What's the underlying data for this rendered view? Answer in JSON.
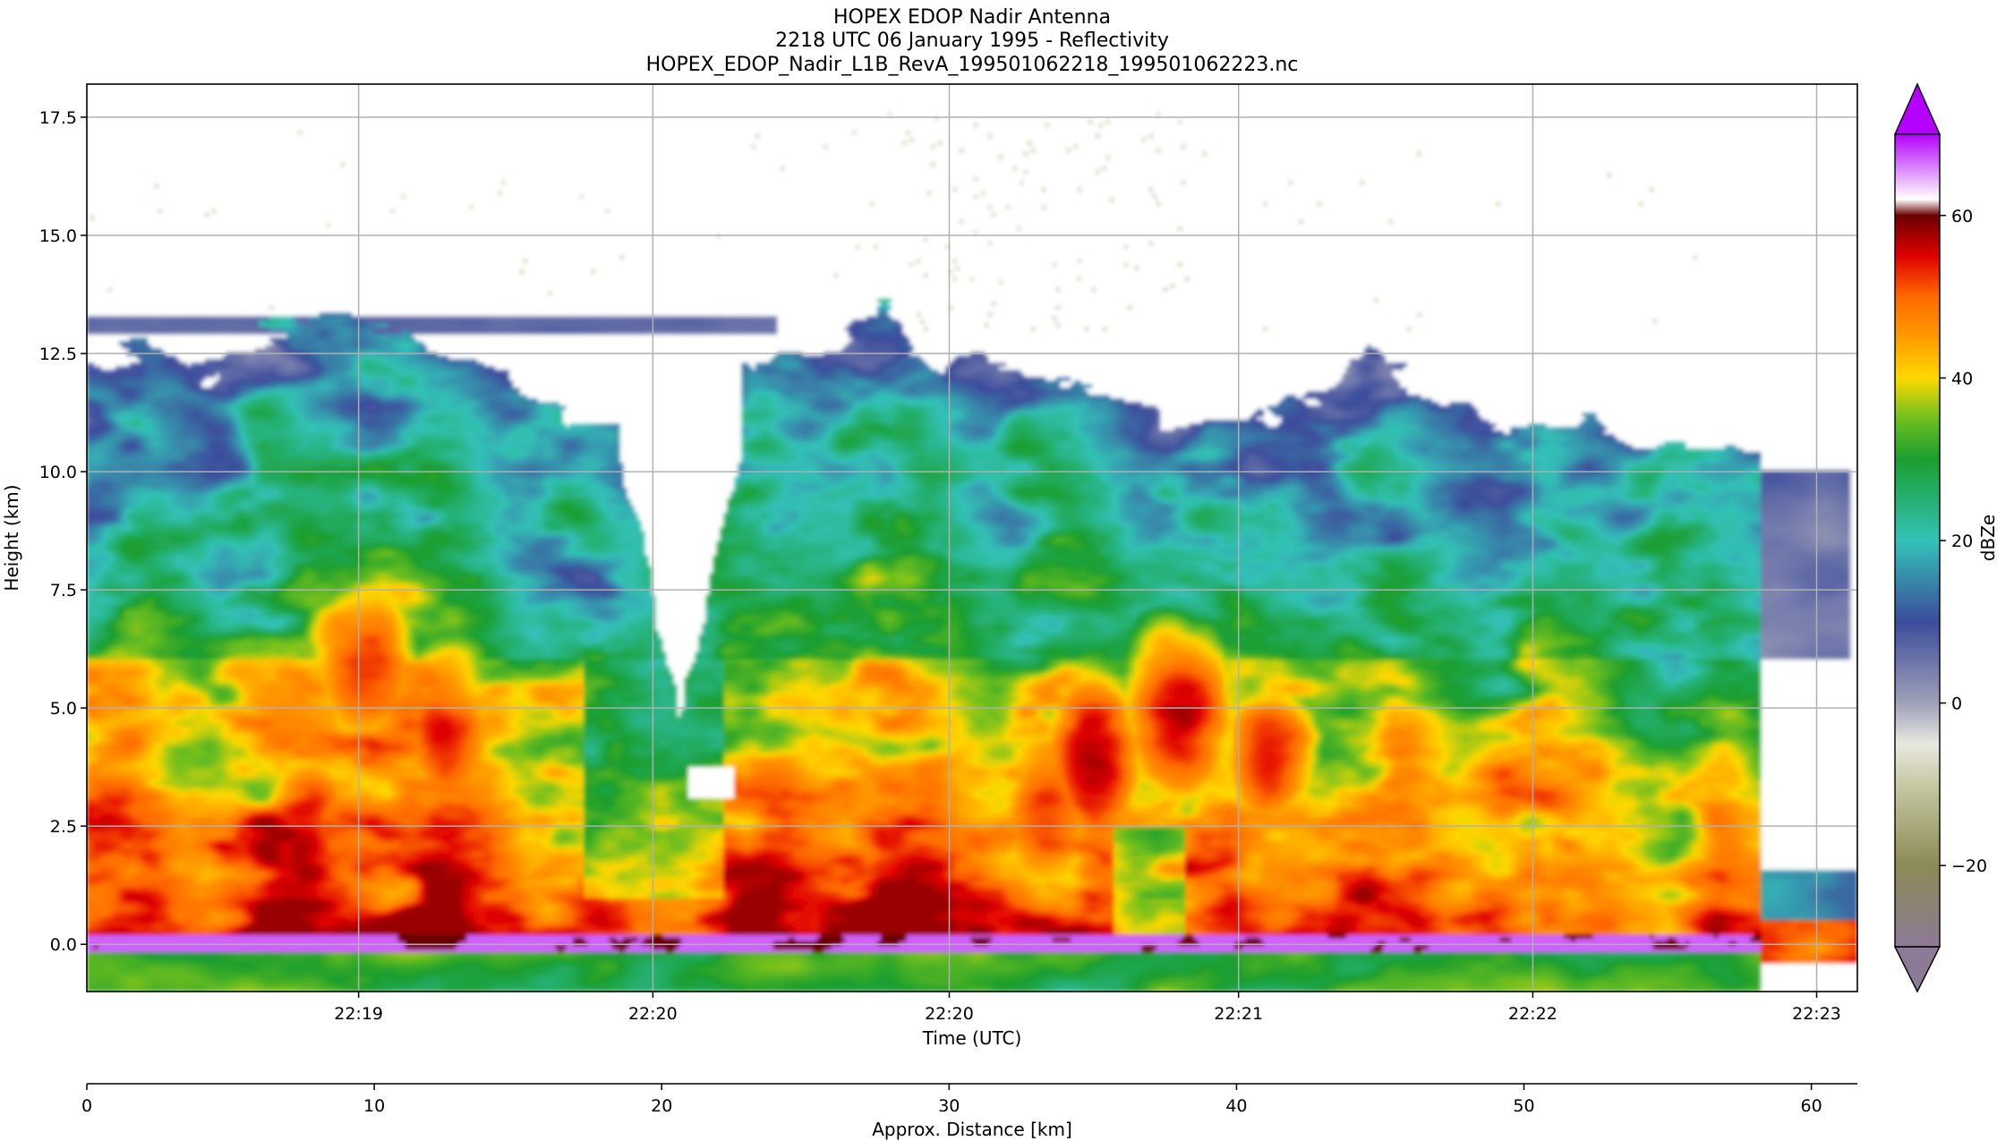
{
  "title_lines": [
    "HOPEX EDOP Nadir Antenna",
    "2218 UTC 06 January 1995 - Reflectivity",
    "HOPEX_EDOP_Nadir_L1B_RevA_199501062218_199501062223.nc"
  ],
  "chart_data": [
    {
      "type": "heatmap",
      "title": "",
      "xlabel": "Time (UTC)",
      "ylabel": "Height (km)",
      "x_ticks": [
        "22:19",
        "22:20",
        "22:20",
        "22:21",
        "22:22",
        "22:23"
      ],
      "y_ticks": [
        0.0,
        2.5,
        5.0,
        7.5,
        10.0,
        12.5,
        15.0,
        17.5
      ],
      "y_tick_labels": [
        "0.0",
        "2.5",
        "5.0",
        "7.5",
        "10.0",
        "12.5",
        "15.0",
        "17.5"
      ],
      "ylim": [
        -1.0,
        18.2
      ],
      "grid": true,
      "colorbar": {
        "label": "dBZe",
        "range": [
          -30,
          70
        ],
        "extend": "both",
        "ticks": [
          -20,
          0,
          20,
          40,
          60
        ],
        "tick_labels": [
          "−20",
          "0",
          "20",
          "40",
          "60"
        ],
        "colors": [
          {
            "v": -30,
            "c": "#8c7a96"
          },
          {
            "v": -20,
            "c": "#8c8a55"
          },
          {
            "v": -10,
            "c": "#c7c9a4"
          },
          {
            "v": -5,
            "c": "#e8e8e0"
          },
          {
            "v": 0,
            "c": "#9ea0b8"
          },
          {
            "v": 10,
            "c": "#3c4c9c"
          },
          {
            "v": 20,
            "c": "#33c2b8"
          },
          {
            "v": 30,
            "c": "#1a9e2e"
          },
          {
            "v": 35,
            "c": "#6fbf1f"
          },
          {
            "v": 40,
            "c": "#ffd900"
          },
          {
            "v": 45,
            "c": "#ff9a00"
          },
          {
            "v": 50,
            "c": "#ff6a00"
          },
          {
            "v": 55,
            "c": "#e00000"
          },
          {
            "v": 60,
            "c": "#6b0000"
          },
          {
            "v": 62,
            "c": "#ffffff"
          },
          {
            "v": 70,
            "c": "#b300ff"
          }
        ]
      },
      "features": {
        "cloud_top_km": [
          12.3,
          12.6,
          12.0,
          12.8,
          13.4,
          13.0,
          12.6,
          12.0,
          11.2,
          10.6,
          12.2,
          12.6,
          12.6,
          13.3,
          12.4,
          12.2,
          12.0,
          11.6,
          11.0,
          10.8,
          11.6,
          12.4,
          11.5,
          11.0,
          10.9,
          11.0,
          10.5,
          10.6,
          10.5,
          10.4
        ],
        "clear_gap_time_fraction": [
          0.3,
          0.37
        ],
        "cores": [
          {
            "t": 0.125,
            "z": 2.1,
            "dbz": 56
          },
          {
            "t": 0.155,
            "z": 5.8,
            "dbz": 55
          },
          {
            "t": 0.205,
            "z": 4.5,
            "dbz": 53
          },
          {
            "t": 0.54,
            "z": 2.6,
            "dbz": 53
          },
          {
            "t": 0.57,
            "z": 3.9,
            "dbz": 56
          },
          {
            "t": 0.615,
            "z": 4.8,
            "dbz": 58
          },
          {
            "t": 0.67,
            "z": 4.0,
            "dbz": 52
          }
        ],
        "surface_return_km": 0.0,
        "data_end_time_fraction": 0.945
      }
    },
    {
      "type": "axis",
      "xlabel": "Approx. Distance [km]",
      "x_ticks": [
        0,
        10,
        20,
        30,
        40,
        50,
        60
      ],
      "xlim": [
        0,
        61.6
      ]
    }
  ]
}
